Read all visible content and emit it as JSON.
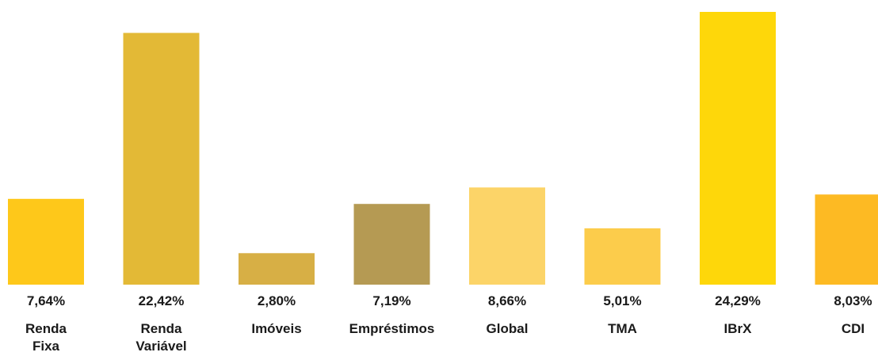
{
  "chart_data": {
    "type": "bar",
    "categories": [
      [
        "Renda",
        "Fixa"
      ],
      [
        "Renda",
        "Variável"
      ],
      [
        "Imóveis"
      ],
      [
        "Empréstimos"
      ],
      [
        "Global"
      ],
      [
        "TMA"
      ],
      [
        "IBrX"
      ],
      [
        "CDI"
      ]
    ],
    "values": [
      7.64,
      22.42,
      2.8,
      7.19,
      8.66,
      5.01,
      24.29,
      8.03
    ],
    "value_labels": [
      "7,64%",
      "22,42%",
      "2,80%",
      "7,19%",
      "8,66%",
      "5,01%",
      "24,29%",
      "8,03%"
    ],
    "colors": [
      "#FEC81A",
      "#E3B936",
      "#D7AF45",
      "#B59A53",
      "#FCD468",
      "#FCCC4B",
      "#FED70A",
      "#FDBA23"
    ],
    "ylim": [
      0,
      24.29
    ],
    "title": "",
    "xlabel": "",
    "ylabel": "",
    "grid": false,
    "legend": "none"
  }
}
